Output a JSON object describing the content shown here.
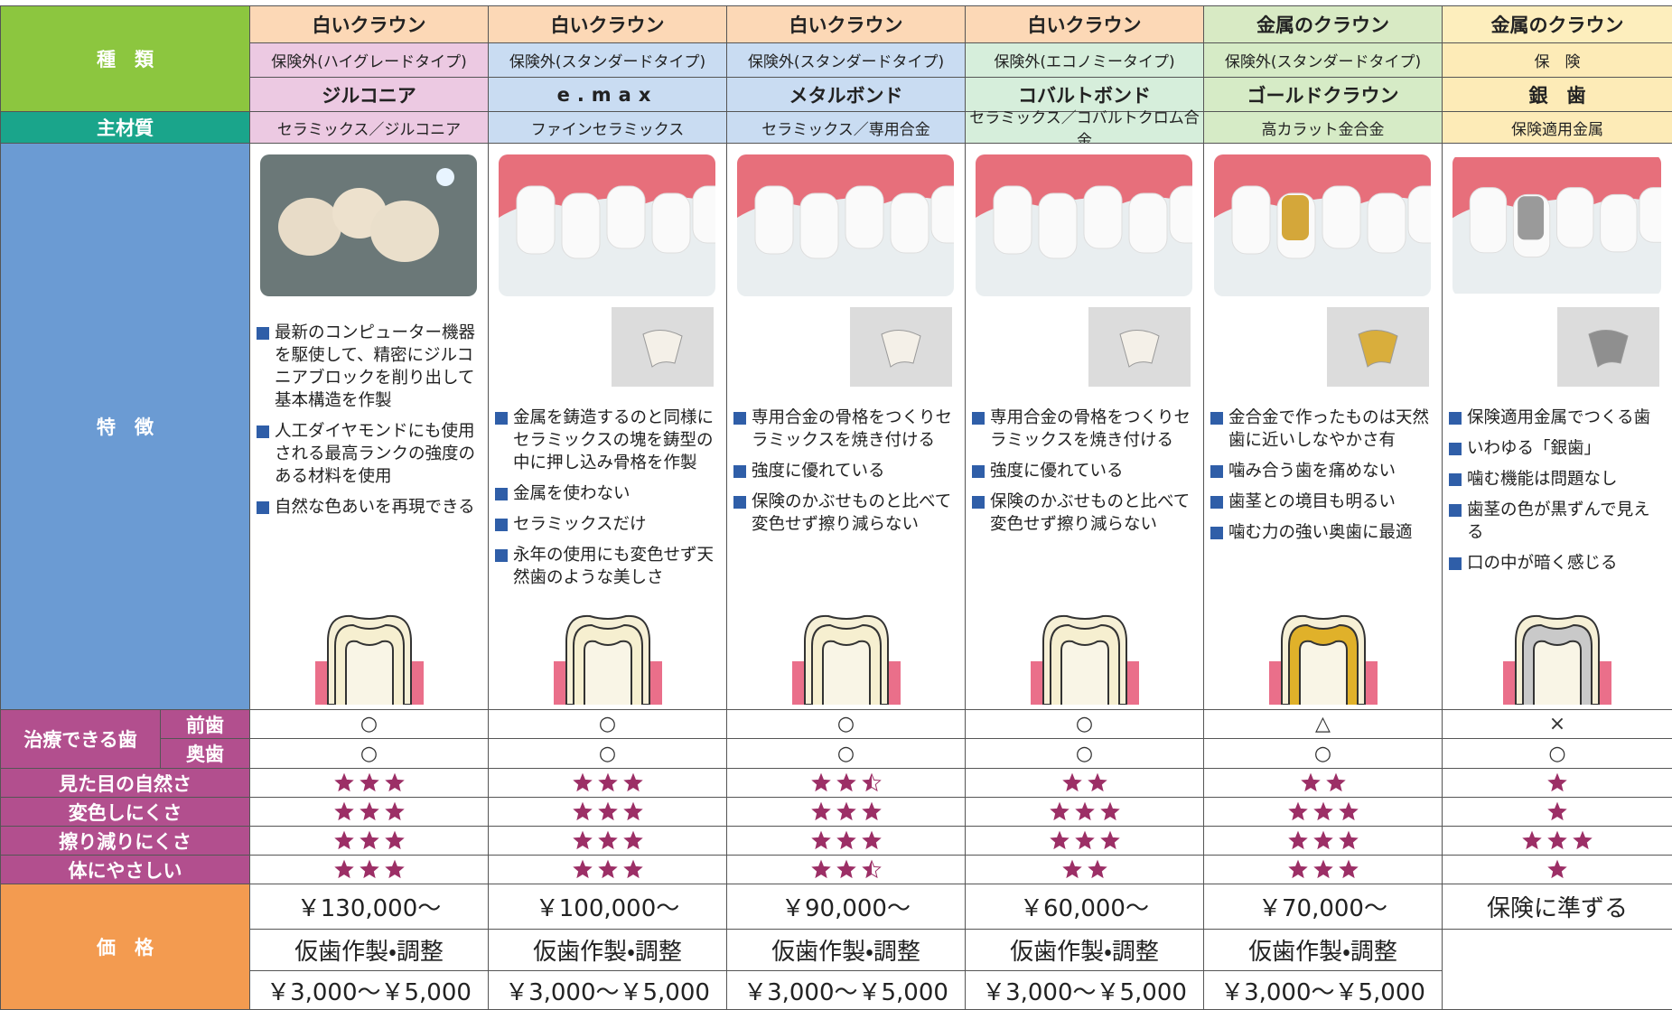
{
  "labels": {
    "type": "種　類",
    "material": "主材質",
    "features": "特　徴",
    "treatable": "治療できる歯",
    "front": "前歯",
    "back": "奥歯",
    "price": "価　格"
  },
  "rating_labels": [
    "見た目の自然さ",
    "変色しにくさ",
    "擦り減りにくさ",
    "体にやさしい"
  ],
  "columns": [
    {
      "category": "白いクラウン",
      "insurance": "保険外(ハイグレードタイプ)",
      "name": "ジルコニア",
      "material": "セラミックス／ジルコニア",
      "features": [
        "最新のコンピューター機器を駆使して、精密にジルコニアブロックを削り出して基本構造を作製",
        "人工ダイヤモンドにも使用される最高ランクの強度のある材料を使用",
        "自然な色あいを再現できる"
      ],
      "front": "○",
      "back": "○",
      "ratings": [
        3,
        3,
        3,
        3
      ],
      "price": "￥130,000～",
      "temp_label": "仮歯作製・調整",
      "temp_price": "￥3,000～￥5,000"
    },
    {
      "category": "白いクラウン",
      "insurance": "保険外(スタンダードタイプ)",
      "name": "e.max",
      "material": "ファインセラミックス",
      "features": [
        "金属を鋳造するのと同様にセラミックスの塊を鋳型の中に押し込み骨格を作製",
        "金属を使わない",
        "セラミックスだけ",
        "永年の使用にも変色せず天然歯のような美しさ"
      ],
      "front": "○",
      "back": "○",
      "ratings": [
        3,
        3,
        3,
        3
      ],
      "price": "￥100,000～",
      "temp_label": "仮歯作製・調整",
      "temp_price": "￥3,000～￥5,000"
    },
    {
      "category": "白いクラウン",
      "insurance": "保険外(スタンダードタイプ)",
      "name": "メタルボンド",
      "material": "セラミックス／専用合金",
      "features": [
        "専用合金の骨格をつくりセラミックスを焼き付ける",
        "強度に優れている",
        "保険のかぶせものと比べて変色せず擦り減らない"
      ],
      "front": "○",
      "back": "○",
      "ratings": [
        2.5,
        3,
        3,
        2.5
      ],
      "price": "￥90,000～",
      "temp_label": "仮歯作製・調整",
      "temp_price": "￥3,000～￥5,000"
    },
    {
      "category": "白いクラウン",
      "insurance": "保険外(エコノミータイプ)",
      "name": "コバルトボンド",
      "material": "セラミックス／コバルトクロム合金",
      "features": [
        "専用合金の骨格をつくりセラミックスを焼き付ける",
        "強度に優れている",
        "保険のかぶせものと比べて変色せず擦り減らない"
      ],
      "front": "○",
      "back": "○",
      "ratings": [
        2,
        3,
        3,
        2
      ],
      "price": "￥60,000～",
      "temp_label": "仮歯作製・調整",
      "temp_price": "￥3,000～￥5,000"
    },
    {
      "category": "金属のクラウン",
      "insurance": "保険外(スタンダードタイプ)",
      "name": "ゴールドクラウン",
      "material": "高カラット金合金",
      "features": [
        "金合金で作ったものは天然歯に近いしなやかさ有",
        "噛み合う歯を痛めない",
        "歯茎との境目も明るい",
        "噛む力の強い奥歯に最適"
      ],
      "front": "△",
      "back": "○",
      "ratings": [
        2,
        3,
        3,
        3
      ],
      "price": "￥70,000～",
      "temp_label": "仮歯作製・調整",
      "temp_price": "￥3,000～￥5,000"
    },
    {
      "category": "金属のクラウン",
      "insurance": "保　険",
      "name": "銀　歯",
      "material": "保険適用金属",
      "features": [
        "保険適用金属でつくる歯",
        "いわゆる「銀歯」",
        "噛む機能は問題なし",
        "歯茎の色が黒ずんで見える",
        "口の中が暗く感じる"
      ],
      "front": "×",
      "back": "○",
      "ratings": [
        1,
        1,
        3,
        1
      ],
      "price": "保険に準ずる"
    }
  ]
}
